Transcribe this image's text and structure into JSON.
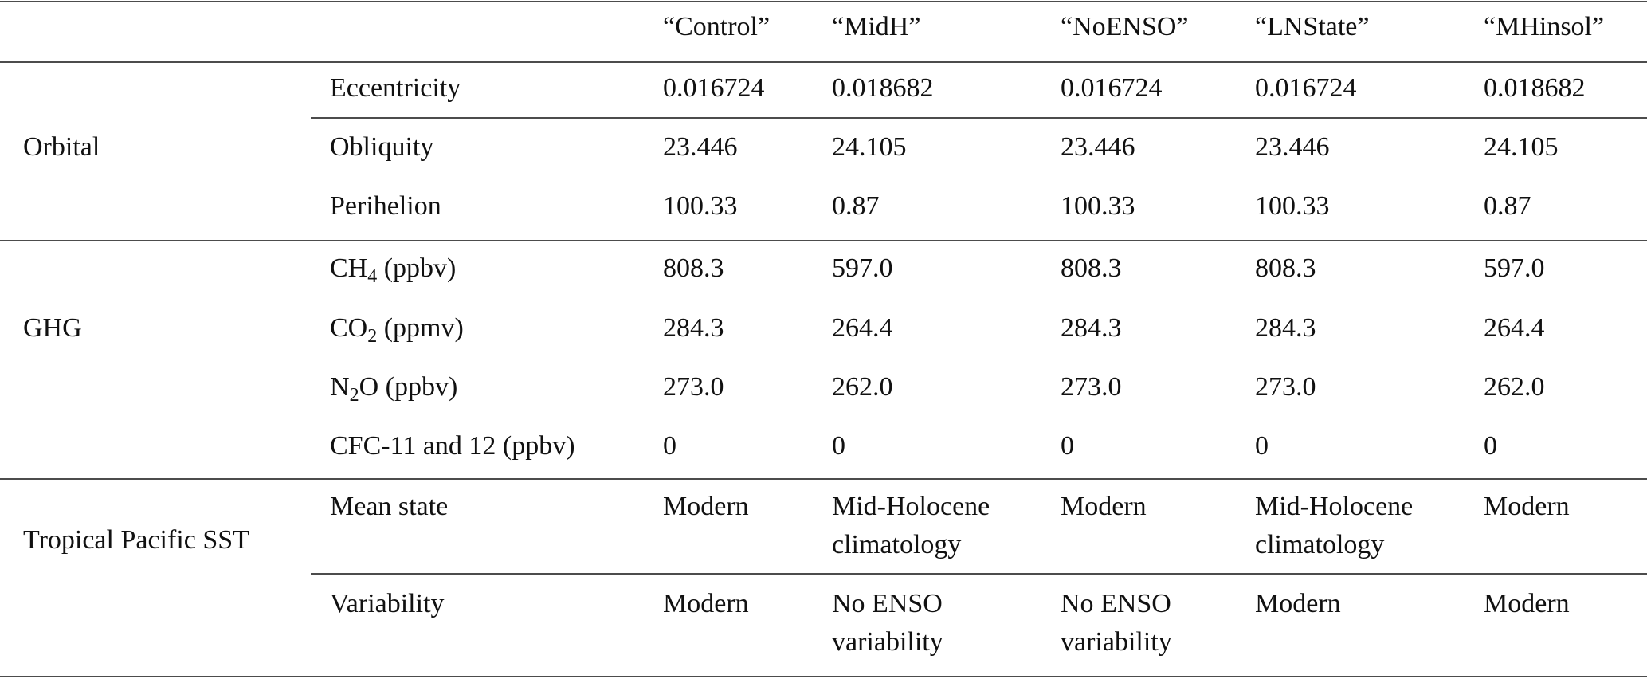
{
  "table": {
    "columns": [
      "“Control”",
      "“MidH”",
      "“NoENSO”",
      "“LNState”",
      "“MHinsol”"
    ],
    "groups": [
      {
        "label": "Orbital",
        "rows": [
          {
            "param": "Eccentricity",
            "values": [
              "0.016724",
              "0.018682",
              "0.016724",
              "0.016724",
              "0.018682"
            ]
          },
          {
            "param": "Obliquity",
            "values": [
              "23.446",
              "24.105",
              "23.446",
              "23.446",
              "24.105"
            ]
          },
          {
            "param": "Perihelion",
            "values": [
              "100.33",
              "0.87",
              "100.33",
              "100.33",
              "0.87"
            ]
          }
        ]
      },
      {
        "label": "GHG",
        "rows": [
          {
            "param": {
              "pre": "CH",
              "sub": "4",
              "post": " (ppbv)"
            },
            "values": [
              "808.3",
              "597.0",
              "808.3",
              "808.3",
              "597.0"
            ]
          },
          {
            "param": {
              "pre": "CO",
              "sub": "2",
              "post": " (ppmv)"
            },
            "values": [
              "284.3",
              "264.4",
              "284.3",
              "284.3",
              "264.4"
            ]
          },
          {
            "param": {
              "pre": "N",
              "sub": "2",
              "post": "O (ppbv)"
            },
            "values": [
              "273.0",
              "262.0",
              "273.0",
              "273.0",
              "262.0"
            ]
          },
          {
            "param": "CFC-11 and 12 (ppbv)",
            "values": [
              "0",
              "0",
              "0",
              "0",
              "0"
            ]
          }
        ]
      },
      {
        "label": "Tropical Pacific SST",
        "rows": [
          {
            "param": "Mean state",
            "values": [
              [
                "Modern"
              ],
              [
                "Mid-Holocene",
                "climatology"
              ],
              [
                "Modern"
              ],
              [
                "Mid-Holocene",
                "climatology"
              ],
              [
                "Modern"
              ]
            ]
          },
          {
            "param": "Variability",
            "values": [
              [
                "Modern"
              ],
              [
                "No ENSO",
                "variability"
              ],
              [
                "No ENSO",
                "variability"
              ],
              [
                "Modern"
              ],
              [
                "Modern"
              ]
            ]
          }
        ]
      }
    ]
  }
}
